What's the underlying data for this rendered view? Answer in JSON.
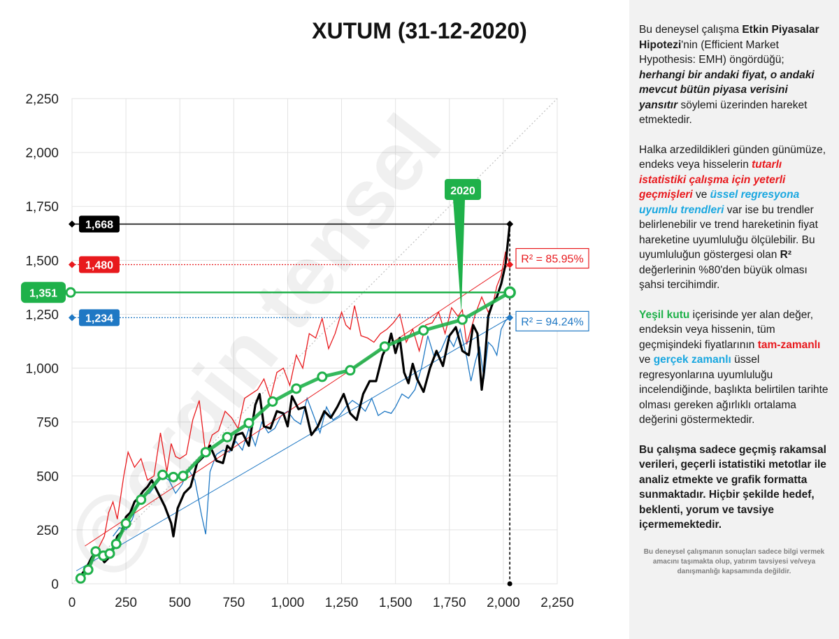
{
  "chart_data": {
    "type": "line",
    "title": "XUTUM (31-12-2020)",
    "xlim": [
      0,
      2250
    ],
    "ylim": [
      0,
      2250
    ],
    "xticks": [
      "0",
      "250",
      "500",
      "750",
      "1,000",
      "1,250",
      "1,500",
      "1,750",
      "2,000",
      "2,250"
    ],
    "yticks": [
      "0",
      "250",
      "500",
      "750",
      "1,000",
      "1,250",
      "1,500",
      "1,750",
      "2,000",
      "2,250"
    ],
    "grid": true,
    "series": [
      {
        "name": "",
        "color": "#e8191d",
        "role": "price-real-time",
        "x": [
          60,
          90,
          120,
          150,
          170,
          190,
          210,
          240,
          260,
          290,
          320,
          350,
          380,
          410,
          440,
          460,
          480,
          500,
          530,
          560,
          590,
          620,
          650,
          680,
          710,
          740,
          770,
          800,
          830,
          860,
          890,
          920,
          950,
          980,
          1010,
          1040,
          1070,
          1100,
          1130,
          1160,
          1190,
          1220,
          1250,
          1270,
          1290,
          1310,
          1340,
          1370,
          1400,
          1430,
          1460,
          1490,
          1520,
          1550,
          1580,
          1610,
          1640,
          1670,
          1700,
          1730,
          1760,
          1790,
          1810,
          1830,
          1850,
          1870,
          1900,
          1930,
          1950,
          1970,
          1990,
          2010,
          2030
        ],
        "y": [
          60,
          100,
          160,
          220,
          330,
          380,
          300,
          500,
          610,
          540,
          580,
          480,
          500,
          700,
          520,
          650,
          590,
          580,
          600,
          760,
          850,
          600,
          690,
          710,
          800,
          770,
          720,
          860,
          880,
          900,
          950,
          860,
          980,
          1000,
          920,
          1060,
          1000,
          1160,
          1140,
          1230,
          1090,
          1160,
          1260,
          1200,
          1180,
          1290,
          1150,
          1140,
          1120,
          1160,
          1180,
          1210,
          1250,
          1120,
          1180,
          1080,
          1200,
          1210,
          1260,
          1160,
          1280,
          1240,
          1270,
          1110,
          1180,
          1250,
          1330,
          1260,
          1290,
          1380,
          1430,
          1540,
          1480
        ]
      },
      {
        "name": "",
        "color": "#1f78c4",
        "role": "price-true-time",
        "x": [
          190,
          220,
          250,
          280,
          300,
          330,
          360,
          390,
          420,
          450,
          480,
          510,
          540,
          570,
          600,
          620,
          640,
          670,
          700,
          730,
          760,
          790,
          820,
          850,
          880,
          910,
          940,
          970,
          1000,
          1030,
          1060,
          1090,
          1120,
          1150,
          1180,
          1210,
          1240,
          1270,
          1300,
          1330,
          1360,
          1390,
          1420,
          1450,
          1480,
          1500,
          1530,
          1560,
          1590,
          1620,
          1650,
          1680,
          1710,
          1740,
          1770,
          1800,
          1830,
          1850,
          1870,
          1890,
          1910,
          1930,
          1950,
          1970,
          1990,
          2010,
          2030
        ],
        "y": [
          220,
          260,
          250,
          300,
          360,
          410,
          420,
          460,
          500,
          480,
          420,
          460,
          530,
          480,
          320,
          230,
          520,
          600,
          620,
          610,
          660,
          620,
          720,
          640,
          750,
          700,
          720,
          780,
          800,
          760,
          740,
          860,
          780,
          700,
          820,
          760,
          780,
          820,
          850,
          830,
          800,
          860,
          780,
          800,
          790,
          820,
          880,
          860,
          900,
          1000,
          1150,
          1050,
          1080,
          1150,
          1100,
          1180,
          1050,
          940,
          1030,
          1100,
          950,
          1120,
          1100,
          1060,
          1180,
          1220,
          1234
        ]
      },
      {
        "name": "",
        "color": "#000000",
        "role": "price-actual",
        "x": [
          30,
          50,
          70,
          90,
          110,
          130,
          150,
          170,
          190,
          210,
          230,
          250,
          270,
          290,
          310,
          330,
          350,
          370,
          400,
          430,
          460,
          470,
          490,
          520,
          550,
          580,
          610,
          640,
          670,
          700,
          720,
          740,
          760,
          790,
          820,
          850,
          870,
          890,
          920,
          950,
          980,
          1000,
          1020,
          1050,
          1080,
          1110,
          1140,
          1170,
          1200,
          1230,
          1260,
          1290,
          1320,
          1350,
          1380,
          1410,
          1440,
          1470,
          1480,
          1500,
          1520,
          1540,
          1560,
          1580,
          1600,
          1630,
          1660,
          1690,
          1720,
          1750,
          1780,
          1810,
          1840,
          1860,
          1880,
          1890,
          1900,
          1910,
          1930,
          1950,
          1970,
          1990,
          2010,
          2030
        ],
        "y": [
          30,
          50,
          80,
          120,
          150,
          130,
          100,
          120,
          160,
          220,
          240,
          310,
          330,
          380,
          400,
          430,
          450,
          480,
          420,
          360,
          280,
          220,
          350,
          420,
          450,
          560,
          590,
          640,
          570,
          560,
          640,
          620,
          690,
          700,
          640,
          830,
          880,
          730,
          720,
          800,
          790,
          730,
          870,
          810,
          820,
          690,
          730,
          800,
          770,
          820,
          880,
          790,
          760,
          880,
          940,
          940,
          1060,
          1120,
          1160,
          1070,
          1140,
          980,
          930,
          1020,
          950,
          890,
          1000,
          1080,
          1010,
          1150,
          1190,
          1080,
          1060,
          1200,
          1160,
          1020,
          900,
          980,
          1240,
          1300,
          1330,
          1390,
          1480,
          1668
        ]
      },
      {
        "name": "",
        "color": "#1fb14a",
        "role": "weighted-average",
        "x": [
          40,
          75,
          110,
          145,
          175,
          205,
          250,
          320,
          420,
          470,
          515,
          620,
          720,
          820,
          930,
          1040,
          1160,
          1290,
          1450,
          1630,
          1810,
          2030
        ],
        "y": [
          25,
          65,
          150,
          130,
          140,
          185,
          280,
          390,
          505,
          495,
          500,
          610,
          680,
          745,
          845,
          905,
          960,
          990,
          1100,
          1175,
          1225,
          1351
        ]
      },
      {
        "name": "",
        "color": "#e8191d",
        "role": "trend-real-time",
        "x": [
          60,
          2030
        ],
        "y": [
          175,
          1480
        ]
      },
      {
        "name": "",
        "color": "#1f78c4",
        "role": "trend-true-time",
        "x": [
          20,
          2030
        ],
        "y": [
          60,
          1234
        ]
      }
    ],
    "markers": [
      {
        "label": "1,668",
        "value": 1668,
        "color": "#000000"
      },
      {
        "label": "1,480",
        "value": 1480,
        "color": "#e8191d"
      },
      {
        "label": "1,351",
        "value": 1351,
        "color": "#1fb14a"
      },
      {
        "label": "1,234",
        "value": 1234,
        "color": "#1f78c4"
      }
    ],
    "annotations": [
      {
        "text": "R² = 85.95%",
        "color": "#e8191d"
      },
      {
        "text": "R² = 94.24%",
        "color": "#1f78c4"
      },
      {
        "text": "2020",
        "color": "#1fb14a",
        "x": 1805,
        "y": 1225
      }
    ]
  },
  "watermark": "@ergin tensel",
  "panel": {
    "p1": {
      "a": "Bu deneysel çalışma ",
      "b": "Etkin Piyasalar Hipotezi",
      "c": "'nin (Efficient Market Hypothesis: EMH) öngördüğü; ",
      "d": "herhangi bir andaki fiyat, o andaki mevcut bütün piyasa verisini yansıtır",
      "e": "  söylemi üzerinden hareket etmektedir."
    },
    "p2": {
      "a": "Halka arzedildikleri günden günümüze, endeks veya hisselerin ",
      "b": "tutarlı istatistiki çalışma için yeterli geçmişleri",
      "c": " ve ",
      "d": "üssel regresyona uyumlu trendleri",
      "e": " var ise bu trendler belirlenebilir  ve trend hareketinin fiyat hareketine uyumluluğu ölçülebilir.  Bu uyumluluğun göstergesi olan ",
      "f": "R²",
      "g": " değerlerinin %80'den büyük olması şahsi tercihimdir."
    },
    "p3": {
      "a": "Yeşil kutu",
      "b": " içerisinde yer alan değer, endeksin veya hissenin, tüm geçmişindeki fiyatlarının ",
      "c": "tam-zamanlı",
      "d": " ve ",
      "e": "gerçek zamanlı",
      "f": " üssel regresyonlarına uyumluluğu incelendiğinde, başlıkta belirtilen tarihte olması gereken ağırlıklı ortalama değerini göstermektedir."
    },
    "p4": "Bu çalışma sadece geçmiş rakamsal verileri, geçerli istatistiki metotlar ile  analiz etmekte ve grafik formatta sunmaktadır. Hiçbir şekilde hedef, beklenti, yorum ve tavsiye içermemektedir.",
    "disclaimer": "Bu deneysel çalışmanın sonuçları sadece bilgi vermek amacını taşımakta olup, yatırım tavsiyesi ve/veya danışmanlığı kapsamında değildir."
  }
}
